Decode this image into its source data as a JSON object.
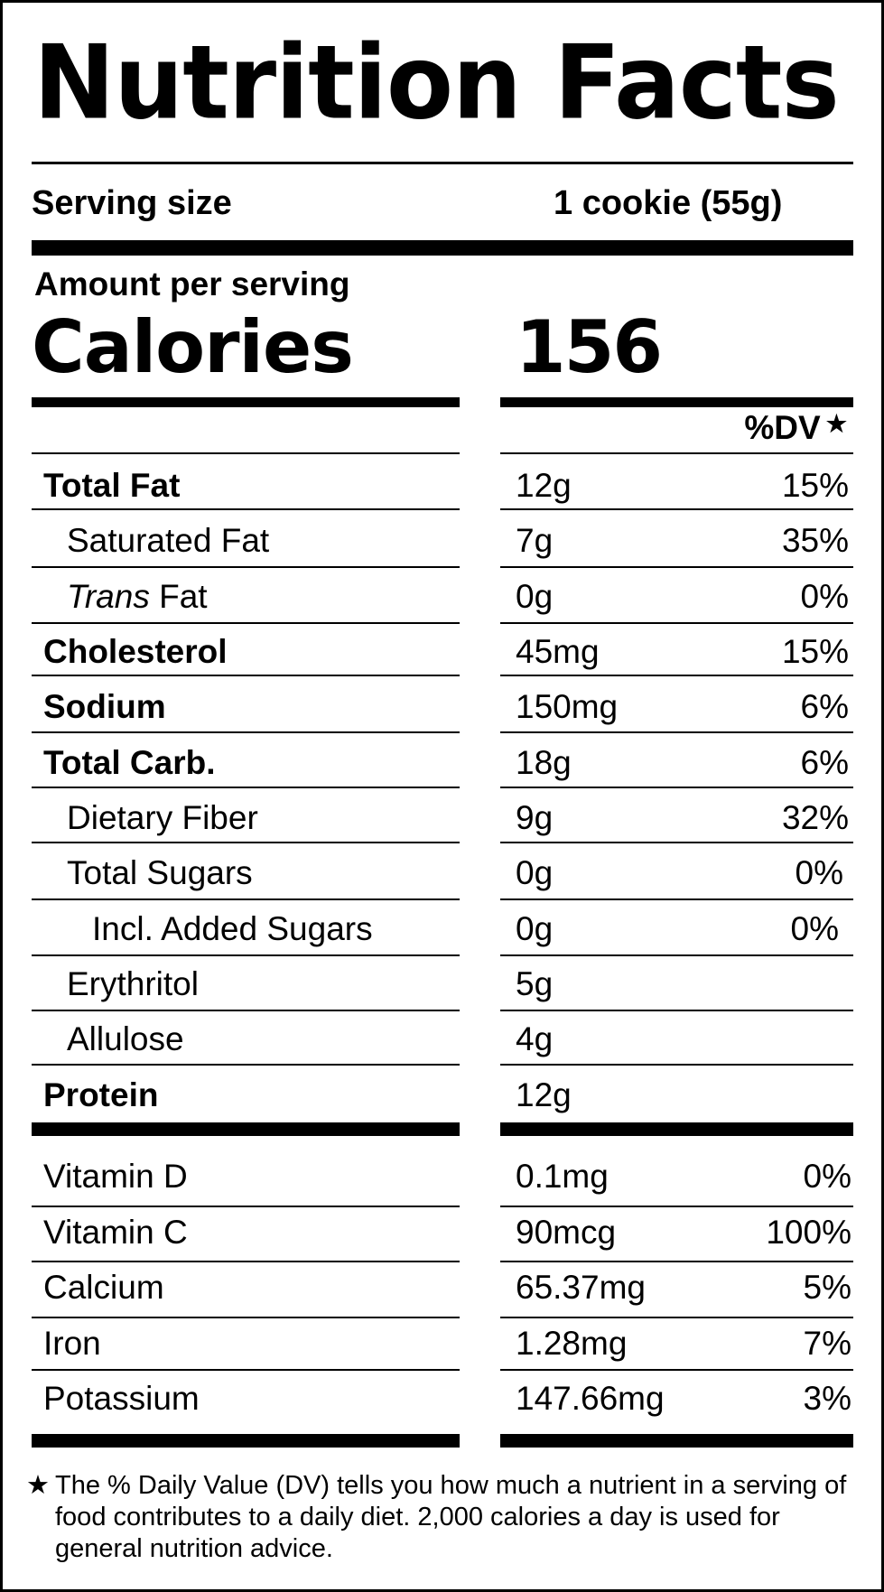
{
  "title": "Nutrition Facts",
  "serving": {
    "label": "Serving size",
    "value": "1 cookie (55g)"
  },
  "amount_per_serving": "Amount per serving",
  "calories": {
    "label": "Calories",
    "value": "156"
  },
  "dv_header": "%DV",
  "dv_star": "★",
  "nutrients": [
    {
      "name": "Total Fat",
      "amount": "12g",
      "dv": "15%"
    },
    {
      "name": "Saturated Fat",
      "amount": "7g",
      "dv": "35%"
    },
    {
      "name_italic": "Trans",
      "name_rest": " Fat",
      "amount": "0g",
      "dv": "0%"
    },
    {
      "name": "Cholesterol",
      "amount": "45mg",
      "dv": "15%"
    },
    {
      "name": "Sodium",
      "amount": "150mg",
      "dv": "6%"
    },
    {
      "name": "Total Carb.",
      "amount": "18g",
      "dv": "6%"
    },
    {
      "name": "Dietary Fiber",
      "amount": "9g",
      "dv": "32%"
    },
    {
      "name": "Total Sugars",
      "amount": "0g",
      "dv": "0%"
    },
    {
      "name": "Incl. Added Sugars",
      "amount": "0g",
      "dv": "0%"
    },
    {
      "name": "Erythritol",
      "amount": "5g",
      "dv": ""
    },
    {
      "name": "Allulose",
      "amount": "4g",
      "dv": ""
    },
    {
      "name": "Protein",
      "amount": "12g",
      "dv": ""
    }
  ],
  "vitamins": [
    {
      "name": "Vitamin D",
      "amount": "0.1mg",
      "dv": "0%"
    },
    {
      "name": "Vitamin C",
      "amount": "90mcg",
      "dv": "100%"
    },
    {
      "name": "Calcium",
      "amount": "65.37mg",
      "dv": "5%"
    },
    {
      "name": "Iron",
      "amount": "1.28mg",
      "dv": "7%"
    },
    {
      "name": "Potassium",
      "amount": "147.66mg",
      "dv": "3%"
    }
  ],
  "footnote": {
    "star": "★",
    "text": "The % Daily Value (DV) tells you how much a nutrient in a serving of food contributes to a daily diet. 2,000 calories a day is used for general nutrition advice."
  }
}
